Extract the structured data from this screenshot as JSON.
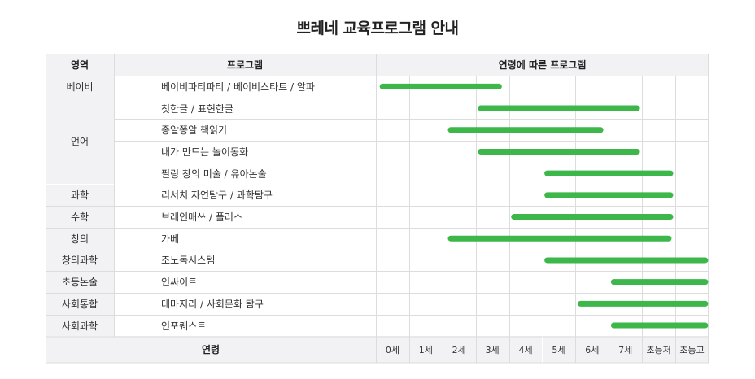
{
  "title": "쁘레네 교육프로그램 안내",
  "header": {
    "area": "영역",
    "program": "프로그램",
    "age_programs": "연령에 따른 프로그램"
  },
  "footer": {
    "age_label": "연령"
  },
  "colors": {
    "bar": "#3db64a",
    "header_bg": "#f2f2f4",
    "border": "#dcdcdc"
  },
  "chart_data": {
    "type": "gantt",
    "title": "쁘레네 교육프로그램 안내",
    "xlabel": "연령",
    "categories": [
      "0세",
      "1세",
      "2세",
      "3세",
      "4세",
      "5세",
      "6세",
      "7세",
      "초등저",
      "초등고"
    ],
    "areas": [
      {
        "name": "베이비",
        "rows": 1
      },
      {
        "name": "언어",
        "rows": 4
      },
      {
        "name": "과학",
        "rows": 1
      },
      {
        "name": "수학",
        "rows": 1
      },
      {
        "name": "창의",
        "rows": 1
      },
      {
        "name": "창의과학",
        "rows": 1
      },
      {
        "name": "초등논술",
        "rows": 1
      },
      {
        "name": "사회통합",
        "rows": 1
      },
      {
        "name": "사회과학",
        "rows": 1
      }
    ],
    "programs": [
      {
        "name": "베이비파티파티 / 베이비스타트 / 알파",
        "start": 0.2,
        "end": 3.7
      },
      {
        "name": "첫한글 / 표현한글",
        "start": 3.15,
        "end": 7.85
      },
      {
        "name": "종알쫑알 책읽기",
        "start": 2.25,
        "end": 6.75
      },
      {
        "name": "내가 만드는 놀이동화",
        "start": 3.15,
        "end": 7.85
      },
      {
        "name": "필링 창의 미술 / 유아논술",
        "start": 5.15,
        "end": 8.85
      },
      {
        "name": "리서치 자연탐구 / 과학탐구",
        "start": 5.15,
        "end": 8.85
      },
      {
        "name": "브레인매쓰 / 플러스",
        "start": 4.15,
        "end": 8.85
      },
      {
        "name": "가베",
        "start": 2.25,
        "end": 8.8
      },
      {
        "name": "조노돔시스템",
        "start": 5.15,
        "end": 9.9
      },
      {
        "name": "인싸이트",
        "start": 7.15,
        "end": 9.9
      },
      {
        "name": "테마지리 / 사회문화 탐구",
        "start": 6.15,
        "end": 9.9
      },
      {
        "name": "인포퀘스트",
        "start": 7.15,
        "end": 9.9
      }
    ]
  }
}
